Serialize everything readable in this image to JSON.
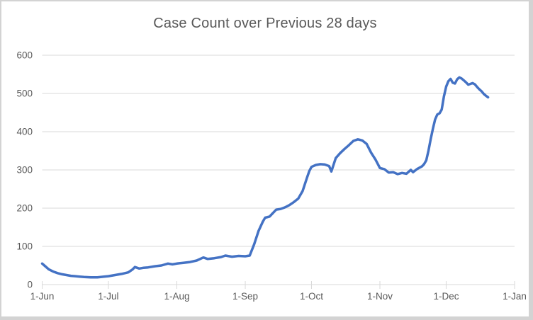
{
  "window": {
    "outer_border_color": "#d3d3d3",
    "chart_background": "#ffffff"
  },
  "chart": {
    "title": "Case Count over Previous 28 days",
    "title_color": "#595959",
    "axis_text_color": "#595959",
    "gridline_color": "#d9d9d9",
    "line_color": "#4472C4"
  },
  "chart_data": {
    "type": "line",
    "title": "Case Count over Previous 28 days",
    "xlabel": "",
    "ylabel": "",
    "legend": "none",
    "grid": "horizontal",
    "y_axis": {
      "ticks": [
        0,
        100,
        200,
        300,
        400,
        500,
        600
      ],
      "range": [
        0,
        600
      ]
    },
    "x_axis": {
      "tick_labels": [
        "1-Jun",
        "1-Jul",
        "1-Aug",
        "1-Sep",
        "1-Oct",
        "1-Nov",
        "1-Dec",
        "1-Jan"
      ],
      "tick_day_offsets": [
        0,
        30,
        61,
        92,
        122,
        153,
        183,
        214
      ],
      "range_days": [
        0,
        214
      ]
    },
    "point_fields": [
      "date_label",
      "day_offset_from_jun1",
      "value"
    ],
    "series": [
      {
        "name": "Case Count",
        "color": "#4472C4",
        "points": [
          [
            "1-Jun",
            0,
            55
          ],
          [
            "2-Jun",
            1,
            50
          ],
          [
            "4-Jun",
            3,
            40
          ],
          [
            "6-Jun",
            5,
            34
          ],
          [
            "8-Jun",
            7,
            30
          ],
          [
            "10-Jun",
            9,
            27
          ],
          [
            "12-Jun",
            11,
            25
          ],
          [
            "14-Jun",
            13,
            23
          ],
          [
            "16-Jun",
            15,
            22
          ],
          [
            "18-Jun",
            17,
            21
          ],
          [
            "20-Jun",
            19,
            20
          ],
          [
            "23-Jun",
            22,
            19
          ],
          [
            "26-Jun",
            25,
            19
          ],
          [
            "29-Jun",
            28,
            21
          ],
          [
            "1-Jul",
            30,
            22
          ],
          [
            "4-Jul",
            33,
            25
          ],
          [
            "7-Jul",
            36,
            28
          ],
          [
            "10-Jul",
            39,
            32
          ],
          [
            "12-Jul",
            41,
            40
          ],
          [
            "13-Jul",
            42,
            46
          ],
          [
            "15-Jul",
            44,
            42
          ],
          [
            "17-Jul",
            46,
            44
          ],
          [
            "19-Jul",
            48,
            45
          ],
          [
            "22-Jul",
            51,
            48
          ],
          [
            "25-Jul",
            54,
            50
          ],
          [
            "28-Jul",
            57,
            55
          ],
          [
            "30-Jul",
            59,
            53
          ],
          [
            "1-Aug",
            61,
            55
          ],
          [
            "4-Aug",
            64,
            57
          ],
          [
            "7-Aug",
            67,
            59
          ],
          [
            "10-Aug",
            70,
            63
          ],
          [
            "13-Aug",
            73,
            71
          ],
          [
            "15-Aug",
            75,
            67
          ],
          [
            "18-Aug",
            78,
            69
          ],
          [
            "21-Aug",
            81,
            72
          ],
          [
            "23-Aug",
            83,
            76
          ],
          [
            "26-Aug",
            86,
            73
          ],
          [
            "29-Aug",
            89,
            75
          ],
          [
            "1-Sep",
            92,
            74
          ],
          [
            "3-Sep",
            94,
            76
          ],
          [
            "5-Sep",
            96,
            105
          ],
          [
            "7-Sep",
            98,
            140
          ],
          [
            "9-Sep",
            100,
            165
          ],
          [
            "10-Sep",
            101,
            175
          ],
          [
            "12-Sep",
            103,
            178
          ],
          [
            "14-Sep",
            105,
            190
          ],
          [
            "15-Sep",
            106,
            196
          ],
          [
            "17-Sep",
            108,
            198
          ],
          [
            "19-Sep",
            110,
            202
          ],
          [
            "21-Sep",
            112,
            208
          ],
          [
            "23-Sep",
            114,
            216
          ],
          [
            "25-Sep",
            116,
            225
          ],
          [
            "27-Sep",
            118,
            245
          ],
          [
            "29-Sep",
            120,
            280
          ],
          [
            "30-Sep",
            121,
            297
          ],
          [
            "1-Oct",
            122,
            308
          ],
          [
            "3-Oct",
            124,
            313
          ],
          [
            "5-Oct",
            126,
            315
          ],
          [
            "7-Oct",
            128,
            314
          ],
          [
            "9-Oct",
            130,
            310
          ],
          [
            "10-Oct",
            131,
            296
          ],
          [
            "12-Oct",
            133,
            331
          ],
          [
            "14-Oct",
            135,
            344
          ],
          [
            "16-Oct",
            137,
            355
          ],
          [
            "18-Oct",
            139,
            365
          ],
          [
            "20-Oct",
            141,
            376
          ],
          [
            "22-Oct",
            143,
            380
          ],
          [
            "24-Oct",
            145,
            377
          ],
          [
            "26-Oct",
            147,
            368
          ],
          [
            "28-Oct",
            149,
            345
          ],
          [
            "30-Oct",
            151,
            327
          ],
          [
            "1-Nov",
            153,
            305
          ],
          [
            "3-Nov",
            155,
            302
          ],
          [
            "5-Nov",
            157,
            293
          ],
          [
            "7-Nov",
            159,
            294
          ],
          [
            "9-Nov",
            161,
            289
          ],
          [
            "11-Nov",
            163,
            292
          ],
          [
            "13-Nov",
            165,
            290
          ],
          [
            "15-Nov",
            167,
            300
          ],
          [
            "16-Nov",
            168,
            294
          ],
          [
            "18-Nov",
            170,
            303
          ],
          [
            "20-Nov",
            172,
            309
          ],
          [
            "21-Nov",
            173,
            315
          ],
          [
            "22-Nov",
            174,
            325
          ],
          [
            "23-Nov",
            175,
            350
          ],
          [
            "24-Nov",
            176,
            380
          ],
          [
            "25-Nov",
            177,
            408
          ],
          [
            "26-Nov",
            178,
            432
          ],
          [
            "27-Nov",
            179,
            445
          ],
          [
            "28-Nov",
            180,
            448
          ],
          [
            "29-Nov",
            181,
            458
          ],
          [
            "30-Nov",
            182,
            492
          ],
          [
            "1-Dec",
            183,
            518
          ],
          [
            "2-Dec",
            184,
            532
          ],
          [
            "3-Dec",
            185,
            538
          ],
          [
            "4-Dec",
            186,
            528
          ],
          [
            "5-Dec",
            187,
            526
          ],
          [
            "6-Dec",
            188,
            537
          ],
          [
            "7-Dec",
            189,
            542
          ],
          [
            "8-Dec",
            190,
            539
          ],
          [
            "9-Dec",
            191,
            534
          ],
          [
            "10-Dec",
            192,
            529
          ],
          [
            "11-Dec",
            193,
            523
          ],
          [
            "12-Dec",
            194,
            525
          ],
          [
            "13-Dec",
            195,
            527
          ],
          [
            "14-Dec",
            196,
            524
          ],
          [
            "15-Dec",
            197,
            517
          ],
          [
            "16-Dec",
            198,
            511
          ],
          [
            "17-Dec",
            199,
            506
          ],
          [
            "18-Dec",
            200,
            499
          ],
          [
            "19-Dec",
            201,
            494
          ],
          [
            "20-Dec",
            202,
            490
          ]
        ]
      }
    ]
  }
}
